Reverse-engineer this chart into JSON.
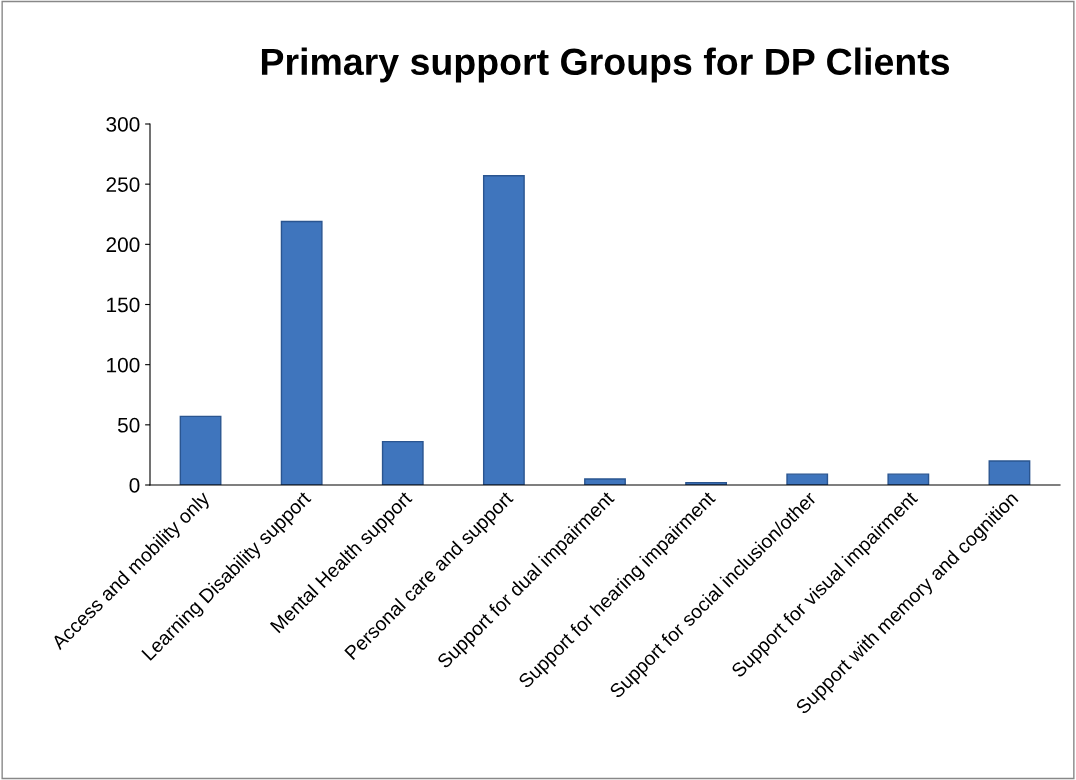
{
  "chart_data": {
    "type": "bar",
    "title": "Primary support Groups for DP Clients",
    "categories": [
      "Access and mobility only",
      "Learning Disability support",
      "Mental Health support",
      "Personal care and support",
      "Support for dual impairment",
      "Support for hearing impairment",
      "Support for social inclusion/other",
      "Support for visual impairment",
      "Support with memory and cognition"
    ],
    "values": [
      57,
      219,
      36,
      257,
      5,
      2,
      9,
      9,
      20
    ],
    "color": "#3f75bd",
    "ylim": [
      0,
      300
    ],
    "yticks": [
      0,
      50,
      100,
      150,
      200,
      250,
      300
    ],
    "grid": false,
    "legend": false
  }
}
